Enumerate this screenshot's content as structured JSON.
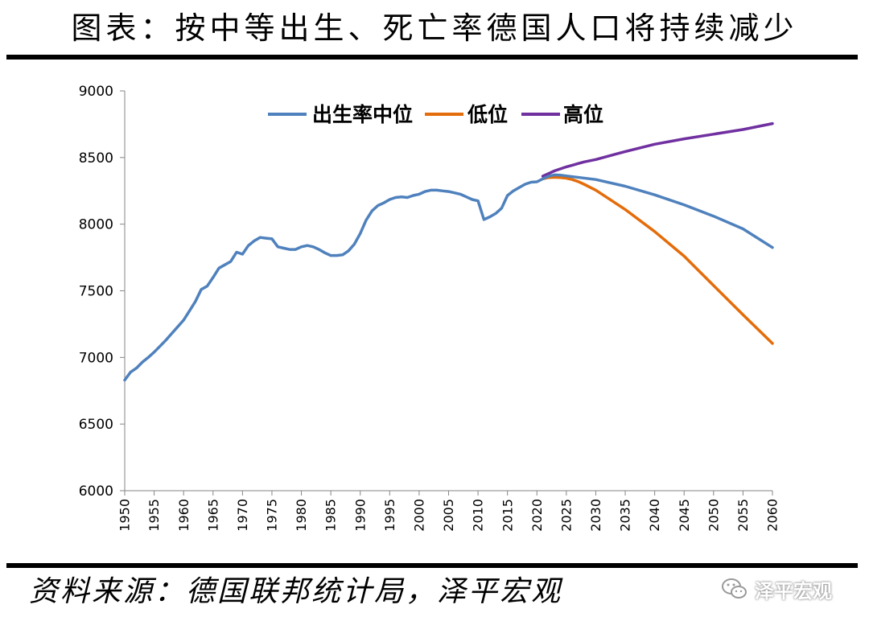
{
  "header": {
    "title": "图表：按中等出生、死亡率德国人口将持续减少"
  },
  "footer": {
    "source": "资料来源：德国联邦统计局，泽平宏观",
    "watermark_text": "泽平宏观",
    "watermark_icon": "wechat-icon"
  },
  "chart_data": {
    "type": "line",
    "title": "",
    "xlabel": "",
    "ylabel": "",
    "xlim": [
      1950,
      2060
    ],
    "ylim": [
      6000,
      9000
    ],
    "yticks": [
      6000,
      6500,
      7000,
      7500,
      8000,
      8500,
      9000
    ],
    "xticks": [
      1950,
      1955,
      1960,
      1965,
      1970,
      1975,
      1980,
      1985,
      1990,
      1995,
      2000,
      2005,
      2010,
      2015,
      2020,
      2025,
      2030,
      2035,
      2040,
      2045,
      2050,
      2055,
      2060
    ],
    "grid": false,
    "legend_position": "top",
    "series": [
      {
        "name": "出生率中位",
        "color": "#4f81bd",
        "x": [
          1950,
          1951,
          1952,
          1953,
          1954,
          1955,
          1956,
          1957,
          1958,
          1959,
          1960,
          1961,
          1962,
          1963,
          1964,
          1965,
          1966,
          1967,
          1968,
          1969,
          1970,
          1971,
          1972,
          1973,
          1974,
          1975,
          1976,
          1977,
          1978,
          1979,
          1980,
          1981,
          1982,
          1983,
          1984,
          1985,
          1986,
          1987,
          1988,
          1989,
          1990,
          1991,
          1992,
          1993,
          1994,
          1995,
          1996,
          1997,
          1998,
          1999,
          2000,
          2001,
          2002,
          2003,
          2004,
          2005,
          2006,
          2007,
          2008,
          2009,
          2010,
          2011,
          2012,
          2013,
          2014,
          2015,
          2016,
          2017,
          2018,
          2019,
          2020,
          2021,
          2022,
          2023,
          2024,
          2025,
          2030,
          2035,
          2040,
          2045,
          2050,
          2055,
          2060
        ],
        "y": [
          6830,
          6890,
          6920,
          6965,
          7000,
          7040,
          7085,
          7130,
          7180,
          7230,
          7280,
          7350,
          7420,
          7510,
          7535,
          7600,
          7670,
          7695,
          7720,
          7790,
          7775,
          7840,
          7875,
          7900,
          7895,
          7890,
          7830,
          7820,
          7810,
          7810,
          7830,
          7840,
          7830,
          7810,
          7785,
          7765,
          7765,
          7770,
          7800,
          7850,
          7930,
          8030,
          8100,
          8140,
          8160,
          8185,
          8200,
          8205,
          8200,
          8215,
          8225,
          8245,
          8255,
          8255,
          8250,
          8245,
          8235,
          8225,
          8205,
          8185,
          8175,
          8035,
          8055,
          8080,
          8120,
          8215,
          8250,
          8275,
          8300,
          8315,
          8318,
          8340,
          8360,
          8370,
          8368,
          8362,
          8335,
          8285,
          8220,
          8145,
          8060,
          7965,
          7825
        ]
      },
      {
        "name": "低位",
        "color": "#e46c0a",
        "x": [
          2021,
          2022,
          2023,
          2024,
          2025,
          2026,
          2027,
          2028,
          2030,
          2035,
          2040,
          2045,
          2050,
          2055,
          2060
        ],
        "y": [
          8340,
          8350,
          8352,
          8350,
          8345,
          8335,
          8320,
          8300,
          8255,
          8110,
          7945,
          7760,
          7540,
          7320,
          7105
        ]
      },
      {
        "name": "高位",
        "color": "#7030a0",
        "x": [
          2021,
          2022,
          2023,
          2024,
          2025,
          2026,
          2027,
          2028,
          2030,
          2035,
          2040,
          2045,
          2050,
          2055,
          2060
        ],
        "y": [
          8360,
          8380,
          8400,
          8415,
          8430,
          8442,
          8455,
          8467,
          8485,
          8545,
          8600,
          8640,
          8675,
          8710,
          8755
        ]
      }
    ]
  }
}
